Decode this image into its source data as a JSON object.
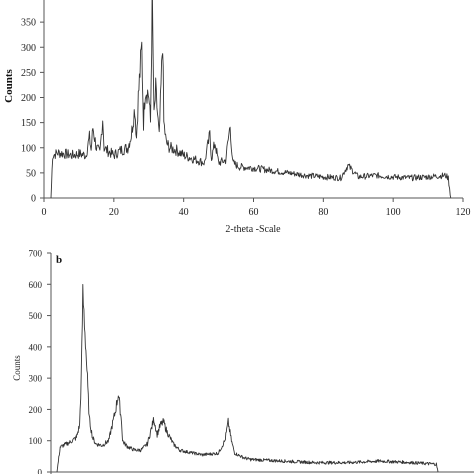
{
  "chart_data": [
    {
      "type": "line",
      "panel_label": "",
      "xlabel": "2-theta -Scale",
      "ylabel": "Counts",
      "xlim": [
        0,
        120
      ],
      "ylim": [
        0,
        400
      ],
      "x_ticks": [
        "0",
        "20",
        "40",
        "60",
        "80",
        "100",
        "120"
      ],
      "y_ticks": [
        "0",
        "50",
        "100",
        "150",
        "200",
        "250",
        "300",
        "350"
      ],
      "series": [
        {
          "x": [
            2,
            2.5,
            4,
            6,
            8,
            10,
            12,
            13,
            13.5,
            14,
            15,
            16,
            16.8,
            17.2,
            18,
            20,
            22,
            24,
            25,
            26,
            26.5,
            27,
            28,
            28.5,
            29,
            30,
            30.5,
            31,
            31.5,
            32,
            33,
            34,
            34.3,
            35,
            36,
            38,
            40,
            42,
            44,
            46,
            47.5,
            48,
            49,
            50,
            52,
            53.3,
            54,
            56,
            60,
            65,
            70,
            75,
            80,
            85,
            87,
            90,
            95,
            100,
            105,
            110,
            115,
            115.8,
            116.5
          ],
          "y": [
            0,
            85,
            90,
            88,
            85,
            88,
            85,
            120,
            95,
            140,
            100,
            90,
            160,
            100,
            95,
            85,
            95,
            100,
            125,
            180,
            120,
            200,
            300,
            150,
            220,
            205,
            150,
            400,
            160,
            215,
            120,
            320,
            150,
            110,
            100,
            95,
            85,
            80,
            75,
            70,
            125,
            80,
            110,
            70,
            75,
            145,
            70,
            62,
            60,
            55,
            50,
            45,
            42,
            40,
            65,
            42,
            45,
            42,
            40,
            42,
            45,
            40,
            0
          ]
        }
      ]
    },
    {
      "type": "line",
      "panel_label": "b",
      "xlabel": "",
      "ylabel": "Counts",
      "ylim": [
        0,
        700
      ],
      "y_ticks": [
        "0",
        "100",
        "200",
        "300",
        "400",
        "500",
        "600",
        "700"
      ],
      "series": [
        {
          "x": [
            0,
            1,
            2,
            4,
            6,
            7,
            7.5,
            8,
            8.8,
            10,
            11,
            12,
            14,
            16,
            18,
            19,
            20,
            20.3,
            21,
            22,
            24,
            26,
            28,
            30,
            31,
            32,
            33,
            34,
            35,
            36,
            38,
            40,
            45,
            50,
            52,
            53,
            54,
            55,
            58,
            60,
            70,
            80,
            90,
            100,
            110,
            117.5,
            118
          ],
          "y": [
            0,
            80,
            85,
            95,
            110,
            150,
            300,
            570,
            420,
            170,
            110,
            90,
            85,
            100,
            190,
            250,
            160,
            100,
            90,
            80,
            70,
            70,
            90,
            170,
            120,
            150,
            160,
            130,
            110,
            90,
            70,
            65,
            55,
            60,
            100,
            160,
            100,
            60,
            45,
            40,
            35,
            30,
            30,
            35,
            30,
            25,
            0
          ]
        }
      ]
    }
  ]
}
